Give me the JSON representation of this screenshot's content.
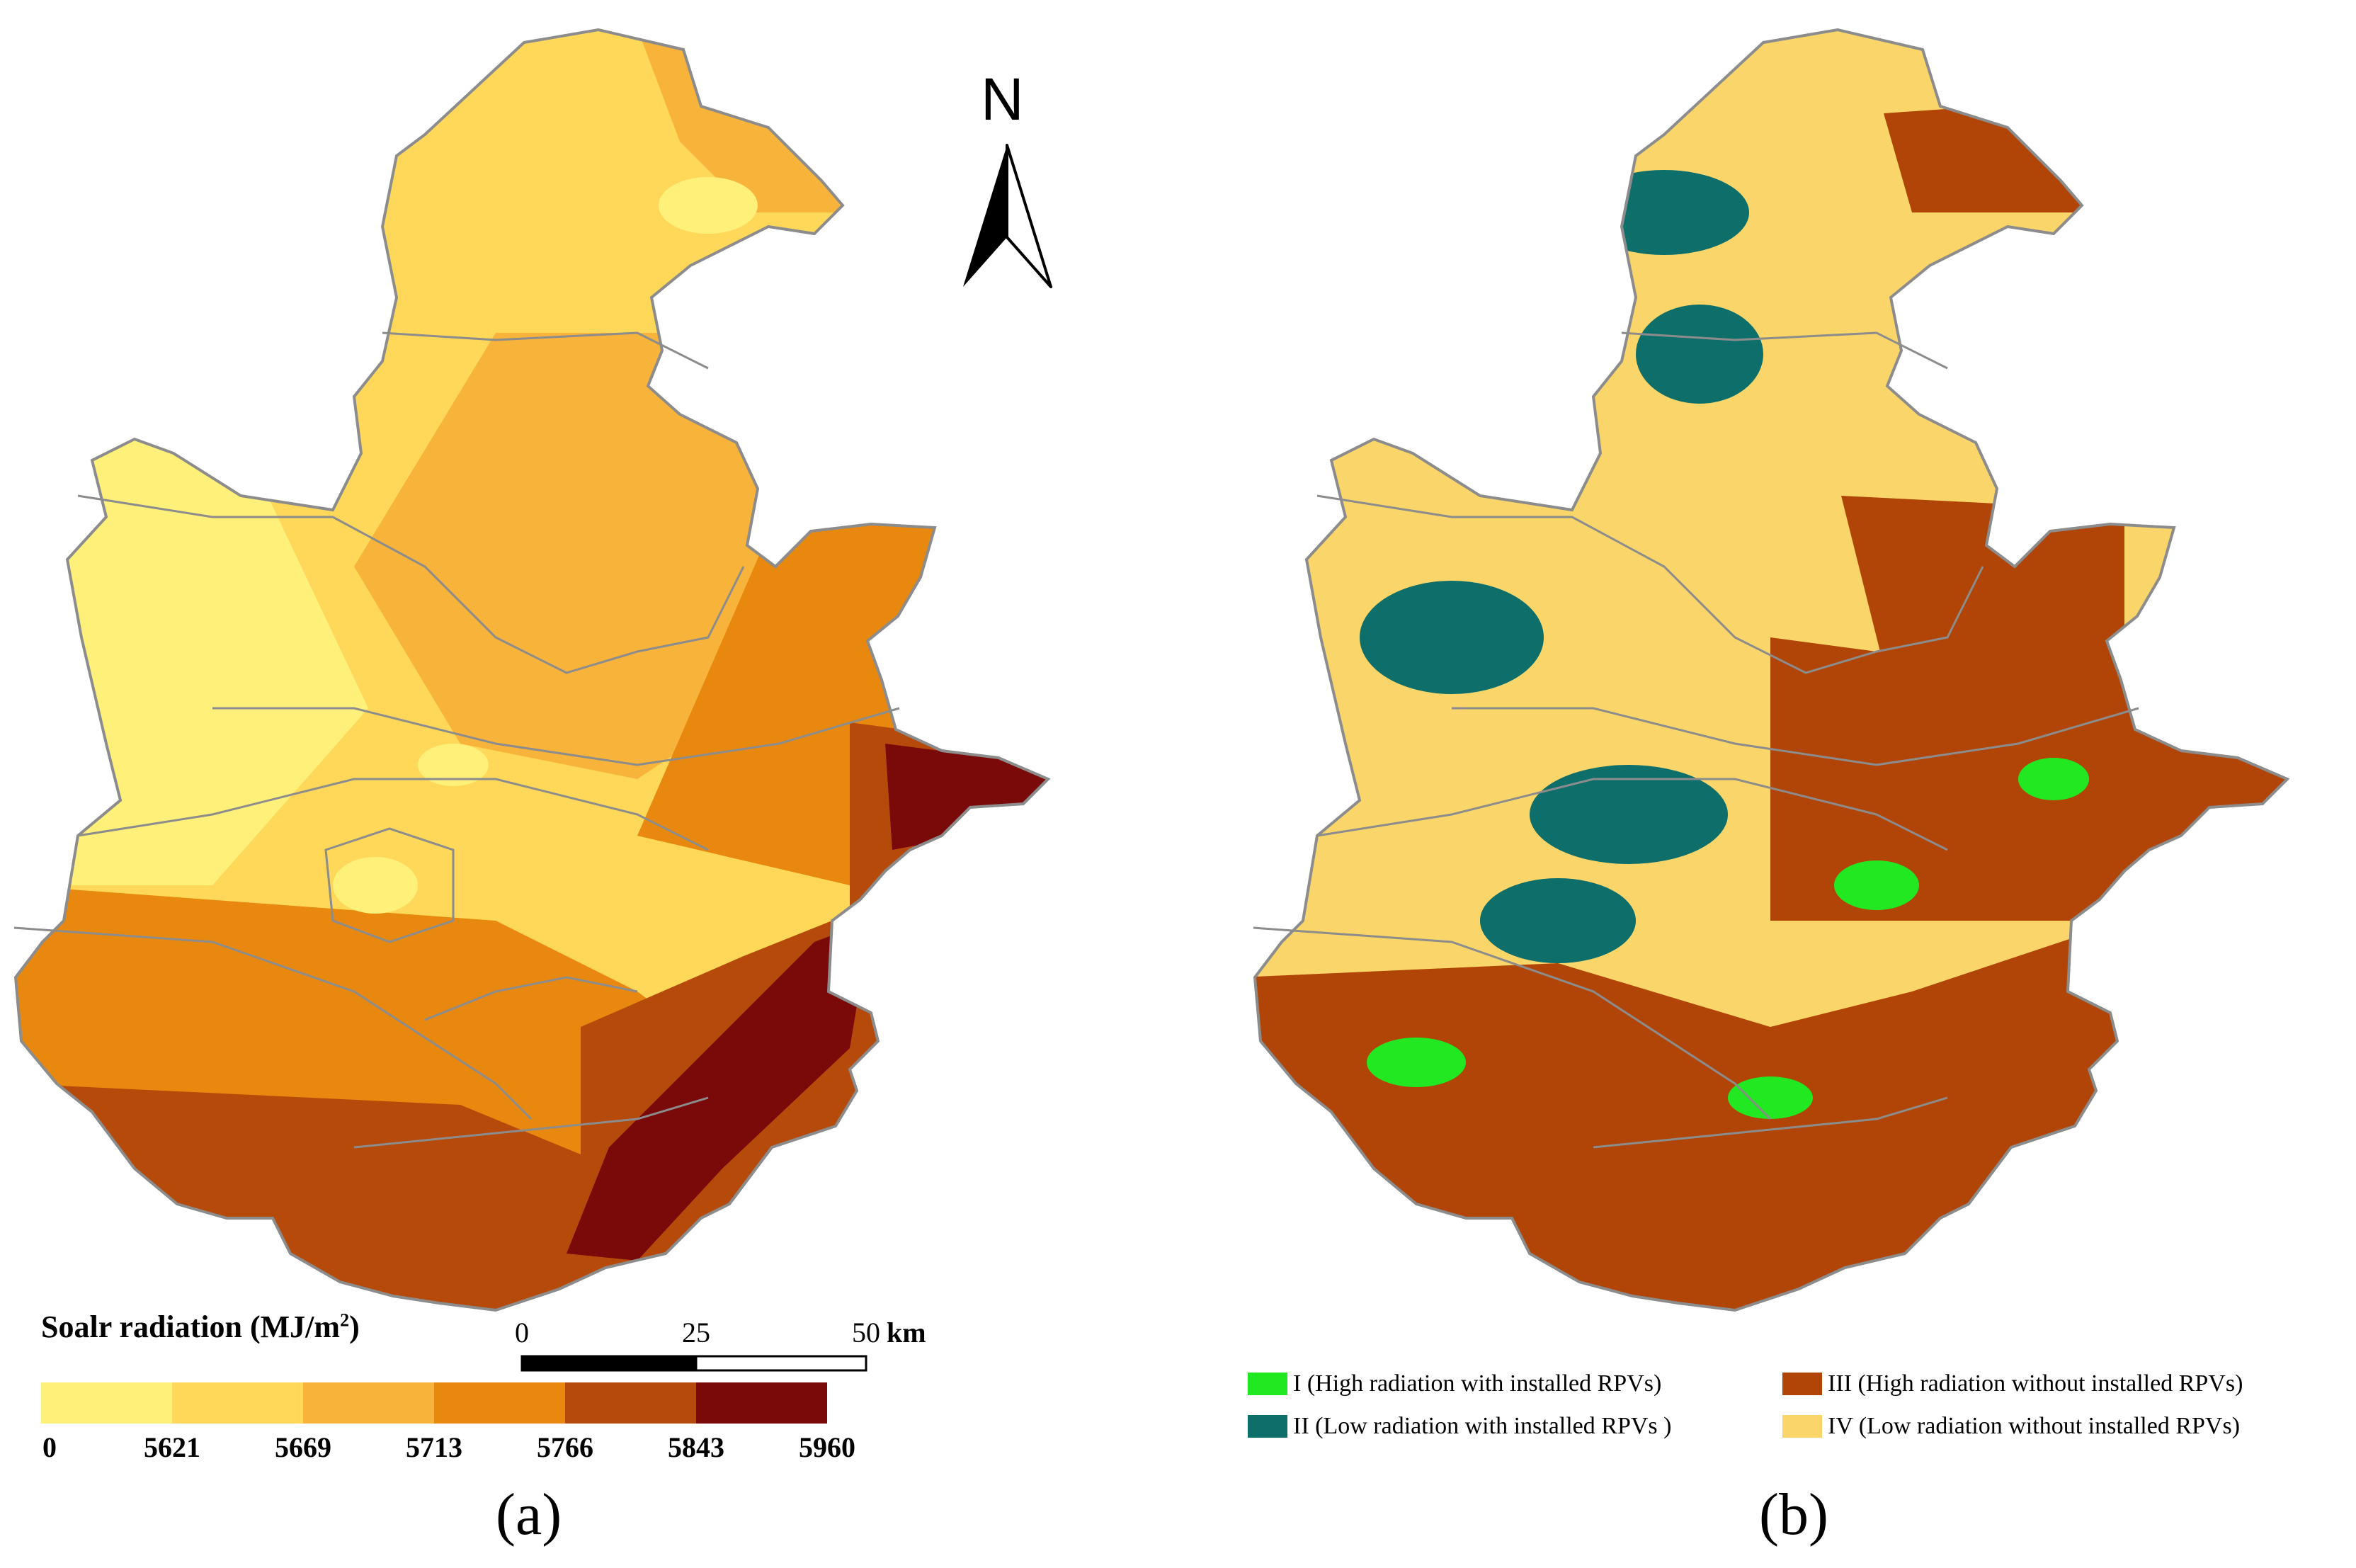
{
  "panel_a": {
    "label": "(a)",
    "legend_title": "Soalr radiation (MJ/m",
    "legend_title_sup": "2",
    "legend_title_close": ")",
    "class_colors": [
      "#FFF07A",
      "#FFD85A",
      "#F8B33A",
      "#E8880F",
      "#B54A0A",
      "#7A0A0A"
    ],
    "tick_labels": [
      "0",
      "5621",
      "5669",
      "5713",
      "5766",
      "5843",
      "5960"
    ],
    "north_label": "N",
    "scale_labels": [
      "0",
      "25",
      "50"
    ],
    "scale_unit": "km"
  },
  "panel_b": {
    "label": "(b)",
    "legend": [
      {
        "text": "I (High radiation with installed RPVs)",
        "color": "#22E822"
      },
      {
        "text": "II (Low radiation with installed RPVs )",
        "color": "#0E6E6A"
      },
      {
        "text": "III (High radiation without installed RPVs)",
        "color": "#B04507"
      },
      {
        "text": "IV (Low radiation without installed RPVs)",
        "color": "#FAD66A"
      }
    ]
  },
  "boundary_color": "#8C8C8C"
}
